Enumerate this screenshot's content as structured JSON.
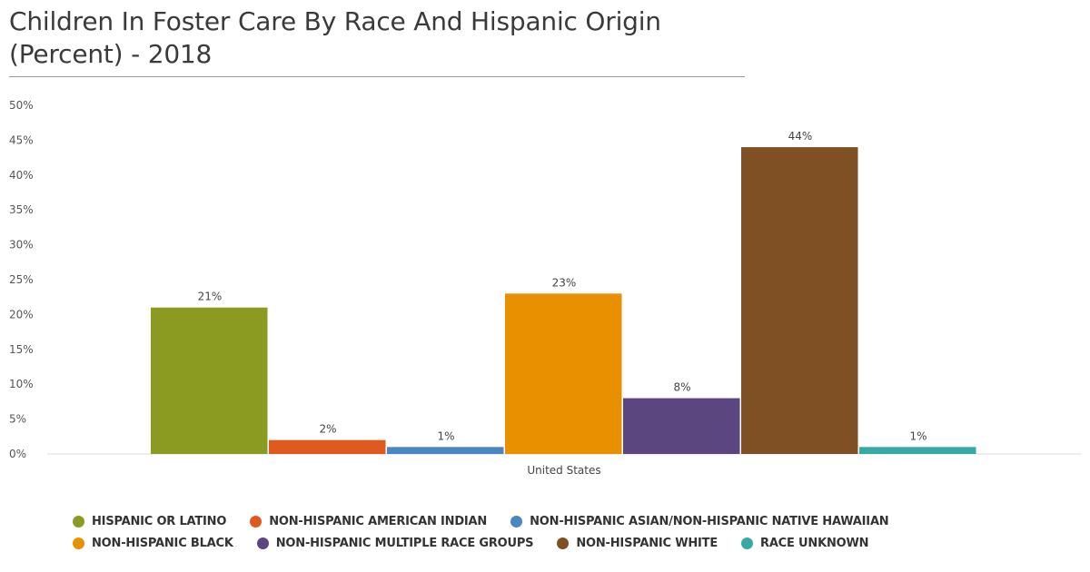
{
  "title_line1": "Children In Foster Care By Race And Hispanic Origin",
  "title_line2": "(Percent) - 2018",
  "chart_data": {
    "type": "bar",
    "title": "Children In Foster Care By Race And Hispanic Origin (Percent) - 2018",
    "categories": [
      "United States"
    ],
    "ylim": [
      0,
      50
    ],
    "yticks": [
      0,
      5,
      10,
      15,
      20,
      25,
      30,
      35,
      40,
      45,
      50
    ],
    "ytick_labels": [
      "0%",
      "5%",
      "10%",
      "15%",
      "20%",
      "25%",
      "30%",
      "35%",
      "40%",
      "45%",
      "50%"
    ],
    "grid": false,
    "legend_position": "bottom",
    "series": [
      {
        "name": "HISPANIC OR LATINO",
        "values": [
          21
        ],
        "label": "21%",
        "color": "#8b9b22"
      },
      {
        "name": "NON-HISPANIC AMERICAN INDIAN",
        "values": [
          2
        ],
        "label": "2%",
        "color": "#e05a1f"
      },
      {
        "name": "NON-HISPANIC ASIAN/NON-HISPANIC NATIVE HAWAIIAN",
        "values": [
          1
        ],
        "label": "1%",
        "color": "#4a86c0"
      },
      {
        "name": "NON-HISPANIC BLACK",
        "values": [
          23
        ],
        "label": "23%",
        "color": "#e89000"
      },
      {
        "name": "NON-HISPANIC MULTIPLE RACE GROUPS",
        "values": [
          8
        ],
        "label": "8%",
        "color": "#5c4680"
      },
      {
        "name": "NON-HISPANIC WHITE",
        "values": [
          44
        ],
        "label": "44%",
        "color": "#7f5023"
      },
      {
        "name": "RACE UNKNOWN",
        "values": [
          1
        ],
        "label": "1%",
        "color": "#35aaa3"
      }
    ]
  }
}
